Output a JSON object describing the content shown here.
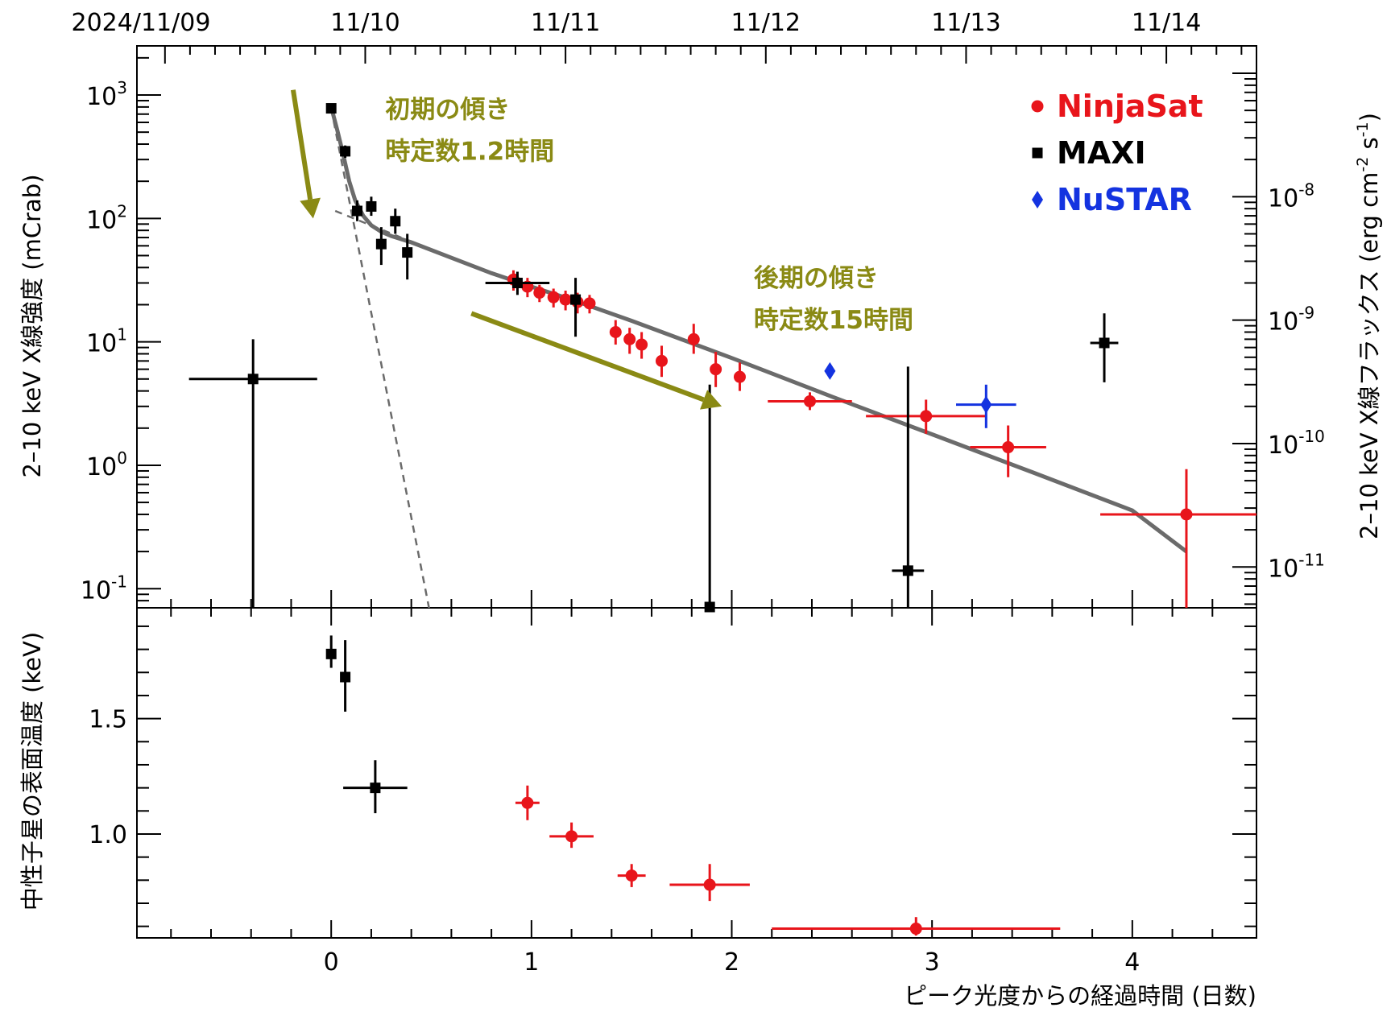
{
  "chart_data": [
    {
      "type": "scatter",
      "panel": "top",
      "xlabel": "ピーク光度からの経過時間 (日数)",
      "ylabel": "2–10 keV X線強度 (mCrab)",
      "ylabel_right": "2–10 keV X線フラックス (erg cm-2 s-1)",
      "xlim": [
        -0.97,
        4.62
      ],
      "ylim": [
        0.07,
        2500
      ],
      "yscale": "log",
      "date_ticks": [
        {
          "x": -0.95,
          "label": "2024/11/09"
        },
        {
          "x": 0.17,
          "label": "11/10"
        },
        {
          "x": 1.17,
          "label": "11/11"
        },
        {
          "x": 2.17,
          "label": "11/12"
        },
        {
          "x": 3.17,
          "label": "11/13"
        },
        {
          "x": 4.17,
          "label": "11/14"
        }
      ],
      "x_ticks": [
        0,
        1,
        2,
        3,
        4
      ],
      "y_ticks": [
        {
          "value": 1000,
          "base": "10",
          "exp": "3"
        },
        {
          "value": 100,
          "base": "10",
          "exp": "2"
        },
        {
          "value": 10,
          "base": "10",
          "exp": "1"
        },
        {
          "value": 1,
          "base": "10",
          "exp": "0"
        },
        {
          "value": 0.1,
          "base": "10",
          "exp": "-1"
        }
      ],
      "right_ticks": [
        {
          "value": 150,
          "base": "10",
          "exp": "-8"
        },
        {
          "value": 15,
          "base": "10",
          "exp": "-9"
        },
        {
          "value": 1.5,
          "base": "10",
          "exp": "-10"
        },
        {
          "value": 0.15,
          "base": "10",
          "exp": "-11"
        }
      ],
      "legend_position": "top-right",
      "series": [
        {
          "name": "NinjaSat",
          "color": "#e8151b",
          "marker": "circle",
          "points": [
            {
              "x": 0.91,
              "y": 32,
              "xerr": 0.02,
              "yerr": [
                26,
                38
              ]
            },
            {
              "x": 0.98,
              "y": 28,
              "xerr": 0.02,
              "yerr": [
                23,
                33
              ]
            },
            {
              "x": 1.04,
              "y": 25,
              "xerr": 0.02,
              "yerr": [
                21,
                29
              ]
            },
            {
              "x": 1.11,
              "y": 23,
              "xerr": 0.02,
              "yerr": [
                19,
                27
              ]
            },
            {
              "x": 1.17,
              "y": 22,
              "xerr": 0.02,
              "yerr": [
                18,
                26
              ]
            },
            {
              "x": 1.23,
              "y": 21,
              "xerr": 0.02,
              "yerr": [
                17,
                25
              ]
            },
            {
              "x": 1.29,
              "y": 20.5,
              "xerr": 0.02,
              "yerr": [
                17,
                24
              ]
            },
            {
              "x": 1.42,
              "y": 12,
              "xerr": 0.02,
              "yerr": [
                9.5,
                15
              ]
            },
            {
              "x": 1.49,
              "y": 10.5,
              "xerr": 0.02,
              "yerr": [
                8,
                13
              ]
            },
            {
              "x": 1.55,
              "y": 9.5,
              "xerr": 0.02,
              "yerr": [
                7.3,
                12
              ]
            },
            {
              "x": 1.65,
              "y": 7,
              "xerr": 0.02,
              "yerr": [
                5.2,
                9.3
              ]
            },
            {
              "x": 1.81,
              "y": 10.5,
              "xerr": 0.02,
              "yerr": [
                8,
                14
              ]
            },
            {
              "x": 1.92,
              "y": 6,
              "xerr": 0.02,
              "yerr": [
                4.3,
                8.3
              ]
            },
            {
              "x": 2.04,
              "y": 5.2,
              "xerr": 0.02,
              "yerr": [
                4.0,
                6.8
              ]
            },
            {
              "x": 2.39,
              "y": 3.3,
              "xerr": 0.21,
              "yerr": [
                2.8,
                3.9
              ]
            },
            {
              "x": 2.97,
              "y": 2.5,
              "xerr": 0.3,
              "yerr": [
                1.8,
                3.4
              ]
            },
            {
              "x": 3.38,
              "y": 1.4,
              "xerr": 0.19,
              "yerr": [
                0.8,
                2.1
              ]
            },
            {
              "x": 4.27,
              "y": 0.4,
              "xerr": 0.43,
              "yerr": [
                0.05,
                0.93
              ]
            }
          ]
        },
        {
          "name": "MAXI",
          "color": "#000000",
          "marker": "square",
          "points": [
            {
              "x": -0.39,
              "y": 5.0,
              "xerr": 0.32,
              "yerr": [
                0.05,
                10.5
              ]
            },
            {
              "x": 0.0,
              "y": 780,
              "xerr": 0.01,
              "yerr": [
                730,
                830
              ]
            },
            {
              "x": 0.07,
              "y": 350,
              "xerr": 0.01,
              "yerr": [
                310,
                390
              ]
            },
            {
              "x": 0.13,
              "y": 115,
              "xerr": 0.01,
              "yerr": [
                95,
                140
              ]
            },
            {
              "x": 0.2,
              "y": 125,
              "xerr": 0.01,
              "yerr": [
                105,
                150
              ]
            },
            {
              "x": 0.25,
              "y": 62,
              "xerr": 0.01,
              "yerr": [
                42,
                85
              ]
            },
            {
              "x": 0.32,
              "y": 95,
              "xerr": 0.01,
              "yerr": [
                75,
                120
              ]
            },
            {
              "x": 0.38,
              "y": 53,
              "xerr": 0.01,
              "yerr": [
                32,
                75
              ]
            },
            {
              "x": 0.93,
              "y": 30,
              "xerr": 0.16,
              "yerr": [
                24,
                37
              ]
            },
            {
              "x": 1.22,
              "y": 22,
              "xerr": 0.02,
              "yerr": [
                11,
                33
              ]
            },
            {
              "x": 1.89,
              "y": 0.07,
              "xerr": 0.01,
              "yerr": [
                0.05,
                4.5
              ]
            },
            {
              "x": 2.88,
              "y": 0.14,
              "xerr": 0.08,
              "yerr": [
                0.05,
                6.3
              ]
            },
            {
              "x": 3.86,
              "y": 9.8,
              "xerr": 0.07,
              "yerr": [
                4.7,
                17
              ]
            }
          ]
        },
        {
          "name": "NuSTAR",
          "color": "#1433e0",
          "marker": "diamond",
          "points": [
            {
              "x": 2.49,
              "y": 5.8,
              "xerr": 0.01,
              "yerr": [
                5.2,
                6.6
              ]
            },
            {
              "x": 3.27,
              "y": 3.1,
              "xerr": 0.15,
              "yerr": [
                2.0,
                4.5
              ]
            }
          ]
        }
      ],
      "model": {
        "color": "#6b6b6b",
        "total_curve": [
          [
            0.0,
            800
          ],
          [
            0.03,
            520
          ],
          [
            0.06,
            330
          ],
          [
            0.09,
            200
          ],
          [
            0.12,
            140
          ],
          [
            0.16,
            105
          ],
          [
            0.2,
            88
          ],
          [
            0.25,
            78
          ],
          [
            0.3,
            72
          ],
          [
            0.4,
            64
          ],
          [
            0.6,
            48
          ],
          [
            0.8,
            36
          ],
          [
            1.0,
            28
          ],
          [
            1.2,
            22
          ],
          [
            1.5,
            14.8
          ],
          [
            2.0,
            7.4
          ],
          [
            2.5,
            3.6
          ],
          [
            3.0,
            1.78
          ],
          [
            3.5,
            0.88
          ],
          [
            4.0,
            0.43
          ],
          [
            4.27,
            0.2
          ]
        ],
        "fast_component": [
          [
            0.0,
            780
          ],
          [
            0.49,
            0.068
          ]
        ],
        "slow_component": [
          [
            0.02,
            115
          ],
          [
            0.35,
            70
          ]
        ]
      },
      "annotations": [
        {
          "lines": [
            "初期の傾き",
            "時定数1.2時間"
          ],
          "x": 0.27,
          "y": 650
        },
        {
          "lines": [
            "後期の傾き",
            "時定数15時間"
          ],
          "x": 2.11,
          "y": 28
        }
      ],
      "arrows": [
        {
          "from": [
            -0.19,
            1100
          ],
          "to": [
            -0.09,
            100
          ]
        },
        {
          "from": [
            0.7,
            17
          ],
          "to": [
            1.95,
            3.0
          ]
        }
      ]
    },
    {
      "type": "scatter",
      "panel": "bottom",
      "ylabel": "中性子星の表面温度 (keV)",
      "xlim": [
        -0.97,
        4.62
      ],
      "ylim": [
        0.55,
        1.98
      ],
      "y_ticks": [
        {
          "value": 1.5,
          "label": "1.5"
        },
        {
          "value": 1.0,
          "label": "1.0"
        }
      ],
      "series": [
        {
          "name": "MAXI",
          "color": "#000000",
          "marker": "square",
          "points": [
            {
              "x": 0.0,
              "y": 1.78,
              "xerr": 0.01,
              "yerr": [
                1.72,
                1.86
              ]
            },
            {
              "x": 0.07,
              "y": 1.68,
              "xerr": 0.01,
              "yerr": [
                1.53,
                1.84
              ]
            },
            {
              "x": 0.22,
              "y": 1.2,
              "xerr": 0.16,
              "yerr": [
                1.09,
                1.32
              ]
            }
          ]
        },
        {
          "name": "NinjaSat",
          "color": "#e8151b",
          "marker": "circle",
          "points": [
            {
              "x": 0.98,
              "y": 1.135,
              "xerr": 0.06,
              "yerr": [
                1.06,
                1.21
              ]
            },
            {
              "x": 1.2,
              "y": 0.99,
              "xerr": 0.11,
              "yerr": [
                0.94,
                1.05
              ]
            },
            {
              "x": 1.5,
              "y": 0.82,
              "xerr": 0.07,
              "yerr": [
                0.77,
                0.87
              ]
            },
            {
              "x": 1.89,
              "y": 0.78,
              "xerr": 0.2,
              "yerr": [
                0.71,
                0.87
              ]
            },
            {
              "x": 2.92,
              "y": 0.59,
              "xerr": 0.72,
              "yerr": [
                0.56,
                0.64
              ]
            }
          ]
        }
      ]
    }
  ]
}
